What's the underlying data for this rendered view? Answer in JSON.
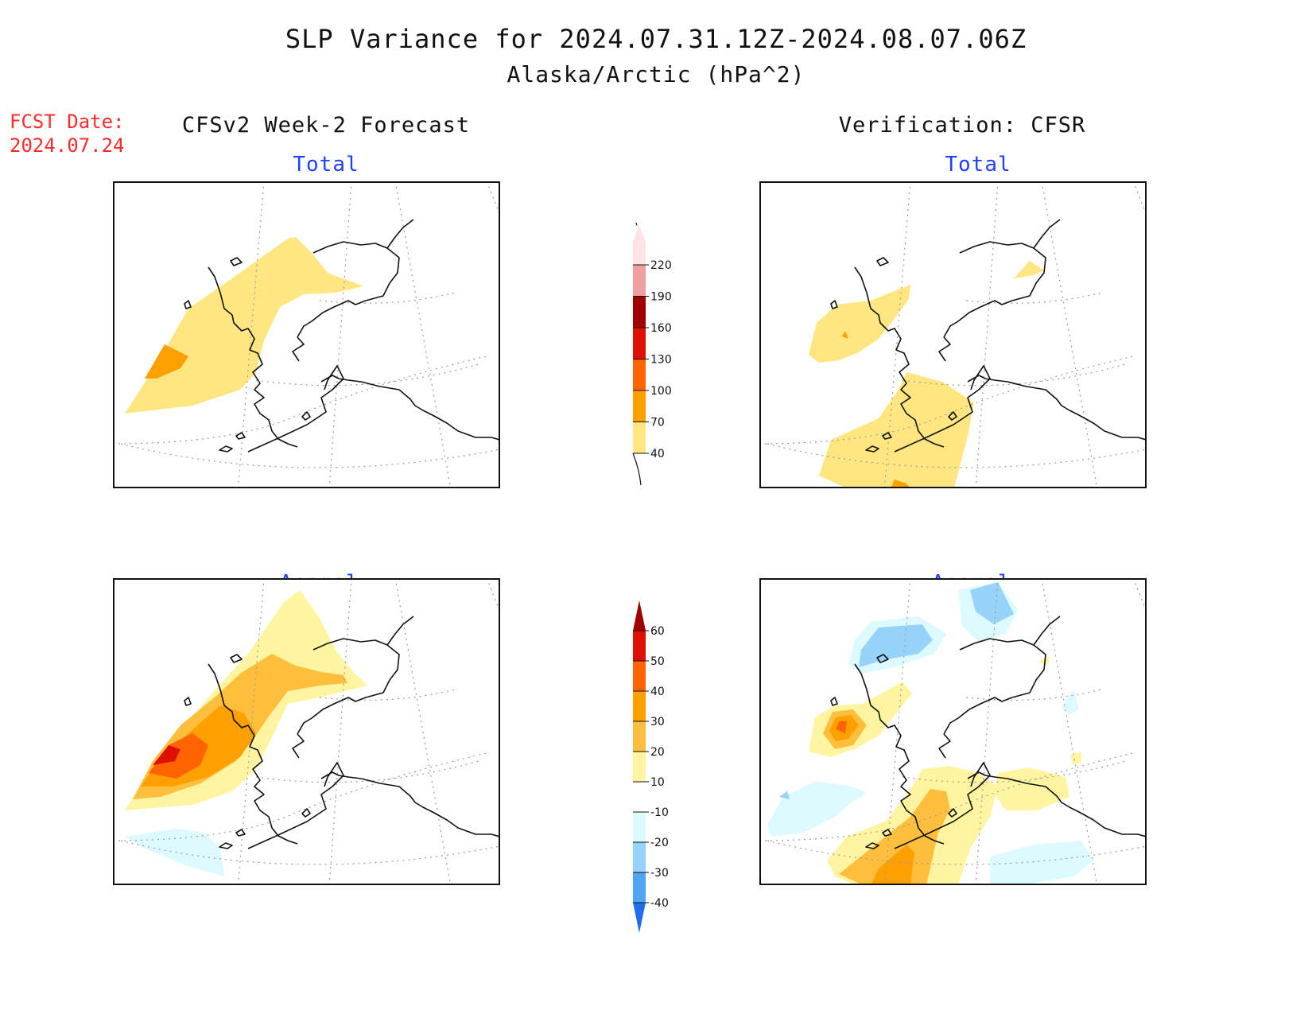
{
  "title": {
    "line1": "SLP Variance for 2024.07.31.12Z-2024.08.07.06Z",
    "line2": "Alaska/Arctic (hPa^2)"
  },
  "fcst": {
    "label": "FCST Date:",
    "date": "2024.07.24"
  },
  "columns": {
    "left": "CFSv2 Week-2 Forecast",
    "right": "Verification: CFSR"
  },
  "panels": {
    "total_label": "Total",
    "anomaly_label": "Anomaly"
  },
  "colorbars": {
    "total": {
      "levels": [
        "40",
        "70",
        "100",
        "130",
        "160",
        "190",
        "220"
      ],
      "colors": [
        "#ffe680",
        "#ffa000",
        "#ff6400",
        "#e01000",
        "#a00000",
        "#f0a0a0",
        "#ffe4e4"
      ]
    },
    "anomaly": {
      "levels": [
        "60",
        "50",
        "40",
        "30",
        "20",
        "10",
        "-10",
        "-20",
        "-30",
        "-40"
      ],
      "colors": [
        "#a00000",
        "#e01000",
        "#ff6400",
        "#ffa000",
        "#ffbe3c",
        "#fff5a0",
        "#ffffff",
        "#dcfaff",
        "#96d2fa",
        "#50a5f5",
        "#1e6eeb"
      ]
    }
  }
}
